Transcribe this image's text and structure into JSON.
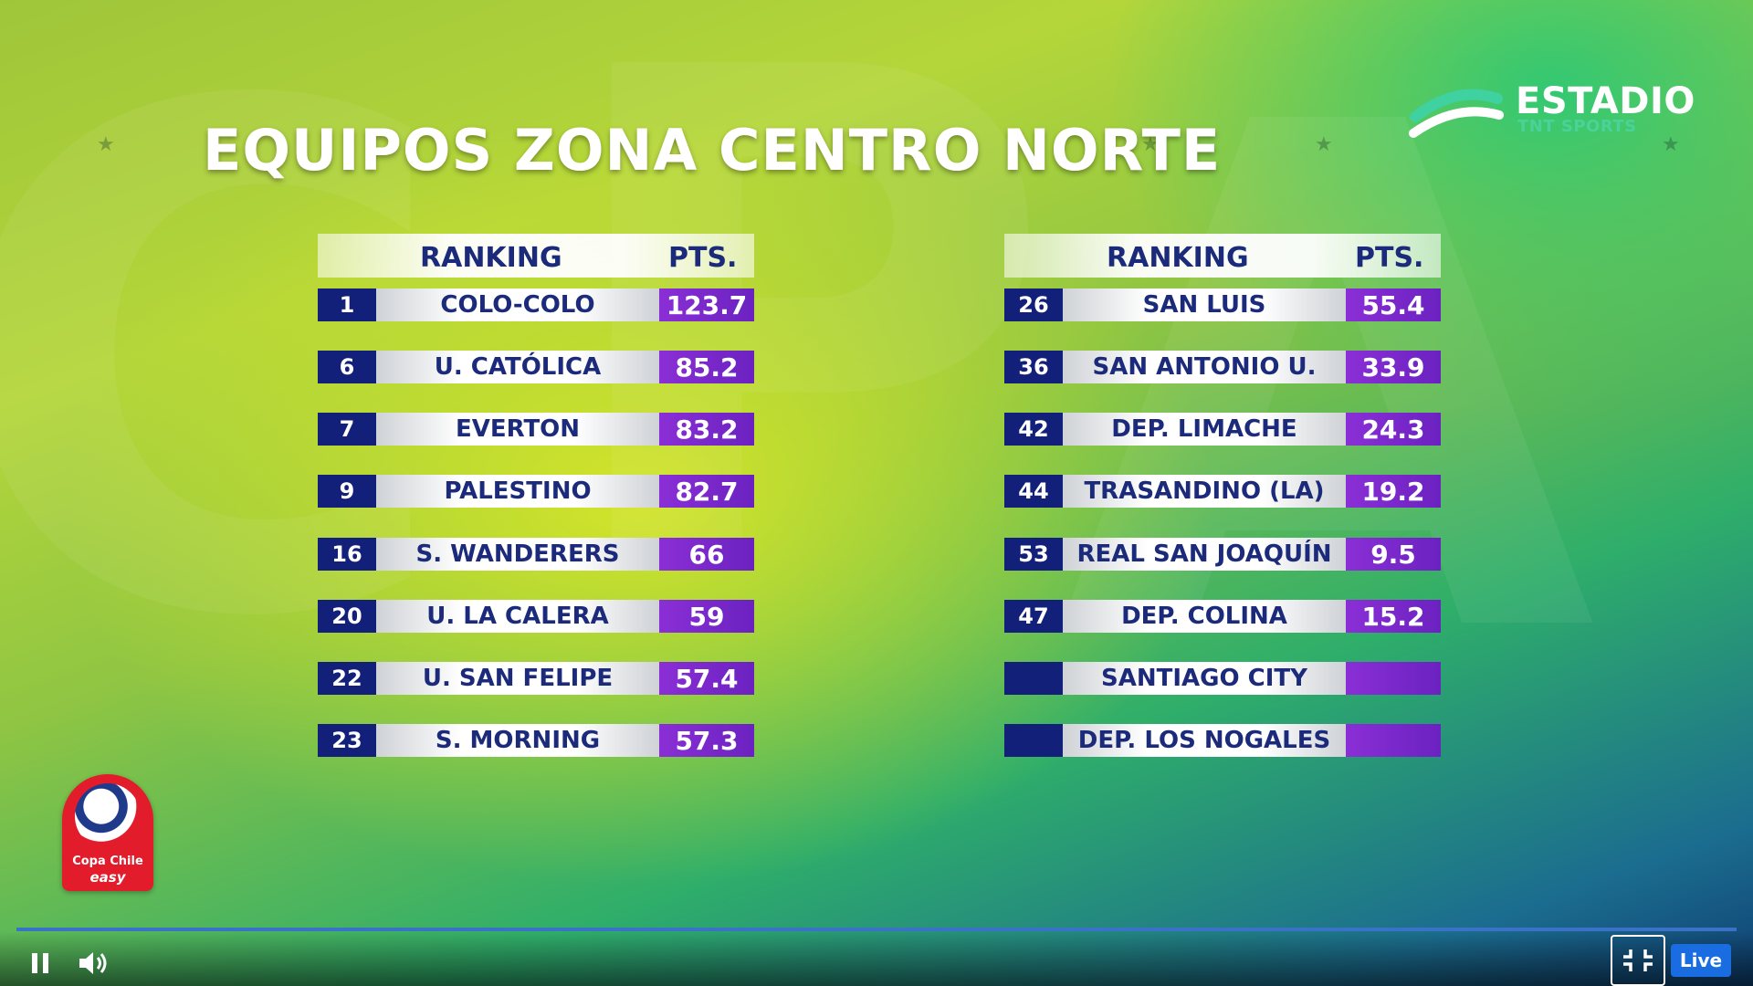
{
  "broadcast": {
    "title": "EQUIPOS ZONA CENTRO NORTE",
    "channel_logo": {
      "name": "ESTADIO",
      "sub": "TNT SPORTS"
    },
    "tournament_logo": {
      "line1": "Copa Chile",
      "line2": "easy"
    }
  },
  "tables": [
    {
      "header": {
        "ranking": "RANKING",
        "pts": "PTS."
      },
      "rows": [
        {
          "rank": "1",
          "team": "COLO-COLO",
          "pts": "123.7"
        },
        {
          "rank": "6",
          "team": "U. CATÓLICA",
          "pts": "85.2"
        },
        {
          "rank": "7",
          "team": "EVERTON",
          "pts": "83.2"
        },
        {
          "rank": "9",
          "team": "PALESTINO",
          "pts": "82.7"
        },
        {
          "rank": "16",
          "team": "S. WANDERERS",
          "pts": "66"
        },
        {
          "rank": "20",
          "team": "U. LA CALERA",
          "pts": "59"
        },
        {
          "rank": "22",
          "team": "U. SAN FELIPE",
          "pts": "57.4"
        },
        {
          "rank": "23",
          "team": "S. MORNING",
          "pts": "57.3"
        }
      ]
    },
    {
      "header": {
        "ranking": "RANKING",
        "pts": "PTS."
      },
      "rows": [
        {
          "rank": "26",
          "team": "SAN LUIS",
          "pts": "55.4"
        },
        {
          "rank": "36",
          "team": "SAN ANTONIO U.",
          "pts": "33.9"
        },
        {
          "rank": "42",
          "team": "DEP. LIMACHE",
          "pts": "24.3"
        },
        {
          "rank": "44",
          "team": "TRASANDINO (LA)",
          "pts": "19.2"
        },
        {
          "rank": "53",
          "team": "REAL SAN JOAQUÍN",
          "pts": "9.5"
        },
        {
          "rank": "47",
          "team": "DEP. COLINA",
          "pts": "15.2"
        },
        {
          "rank": "",
          "team": "SANTIAGO CITY",
          "pts": ""
        },
        {
          "rank": "",
          "team": "DEP. LOS NOGALES",
          "pts": ""
        }
      ]
    }
  ],
  "player": {
    "pause_icon": "pause-icon",
    "volume_icon": "volume-icon",
    "exit_fullscreen_icon": "exit-fullscreen-icon",
    "live_label": "Live",
    "accent_color": "#1a6de0"
  }
}
